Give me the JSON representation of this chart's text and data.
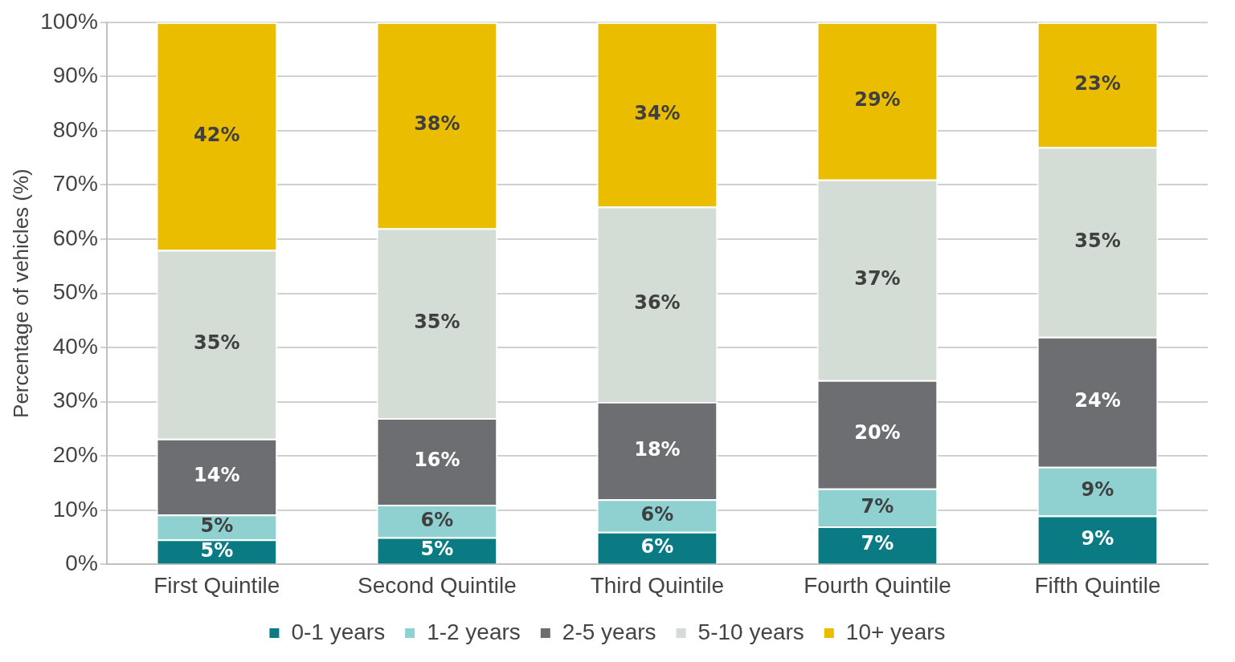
{
  "chart_data": {
    "type": "bar",
    "stacked": true,
    "ylabel": "Percentage of vehicles (%)",
    "categories": [
      "First Quintile",
      "Second Quintile",
      "Third Quintile",
      "Fourth Quintile",
      "Fifth Quintile"
    ],
    "series": [
      {
        "name": "0-1 years",
        "color": "#0a7b83",
        "values": [
          4.6,
          5,
          6,
          7,
          9
        ],
        "value_labels": [
          "5%",
          "5%",
          "6%",
          "7%",
          "9%"
        ]
      },
      {
        "name": "1-2 years",
        "color": "#8fd1d1",
        "values": [
          4.6,
          6,
          6,
          7,
          9
        ],
        "value_labels": [
          "5%",
          "6%",
          "6%",
          "7%",
          "9%"
        ]
      },
      {
        "name": "2-5 years",
        "color": "#6d6e72",
        "values": [
          14,
          16,
          18,
          20,
          24
        ],
        "value_labels": [
          "14%",
          "16%",
          "18%",
          "20%",
          "24%"
        ]
      },
      {
        "name": "5-10 years",
        "color": "#d3ddd5",
        "values": [
          34.8,
          35,
          36,
          37,
          35
        ],
        "value_labels": [
          "35%",
          "35%",
          "36%",
          "37%",
          "35%"
        ]
      },
      {
        "name": "10+ years",
        "color": "#eabd00",
        "values": [
          42,
          38,
          34,
          29,
          23
        ],
        "value_labels": [
          "42%",
          "38%",
          "34%",
          "29%",
          "23%"
        ]
      }
    ],
    "ylim": [
      0,
      100
    ],
    "yticks": [
      {
        "value": 0,
        "label": "0%"
      },
      {
        "value": 10,
        "label": "10%"
      },
      {
        "value": 20,
        "label": "20%"
      },
      {
        "value": 30,
        "label": "30%"
      },
      {
        "value": 40,
        "label": "40%"
      },
      {
        "value": 50,
        "label": "50%"
      },
      {
        "value": 60,
        "label": "60%"
      },
      {
        "value": 70,
        "label": "70%"
      },
      {
        "value": 80,
        "label": "80%"
      },
      {
        "value": 90,
        "label": "90%"
      },
      {
        "value": 100,
        "label": "100%"
      }
    ],
    "grid": "y",
    "legend": "bottom"
  }
}
